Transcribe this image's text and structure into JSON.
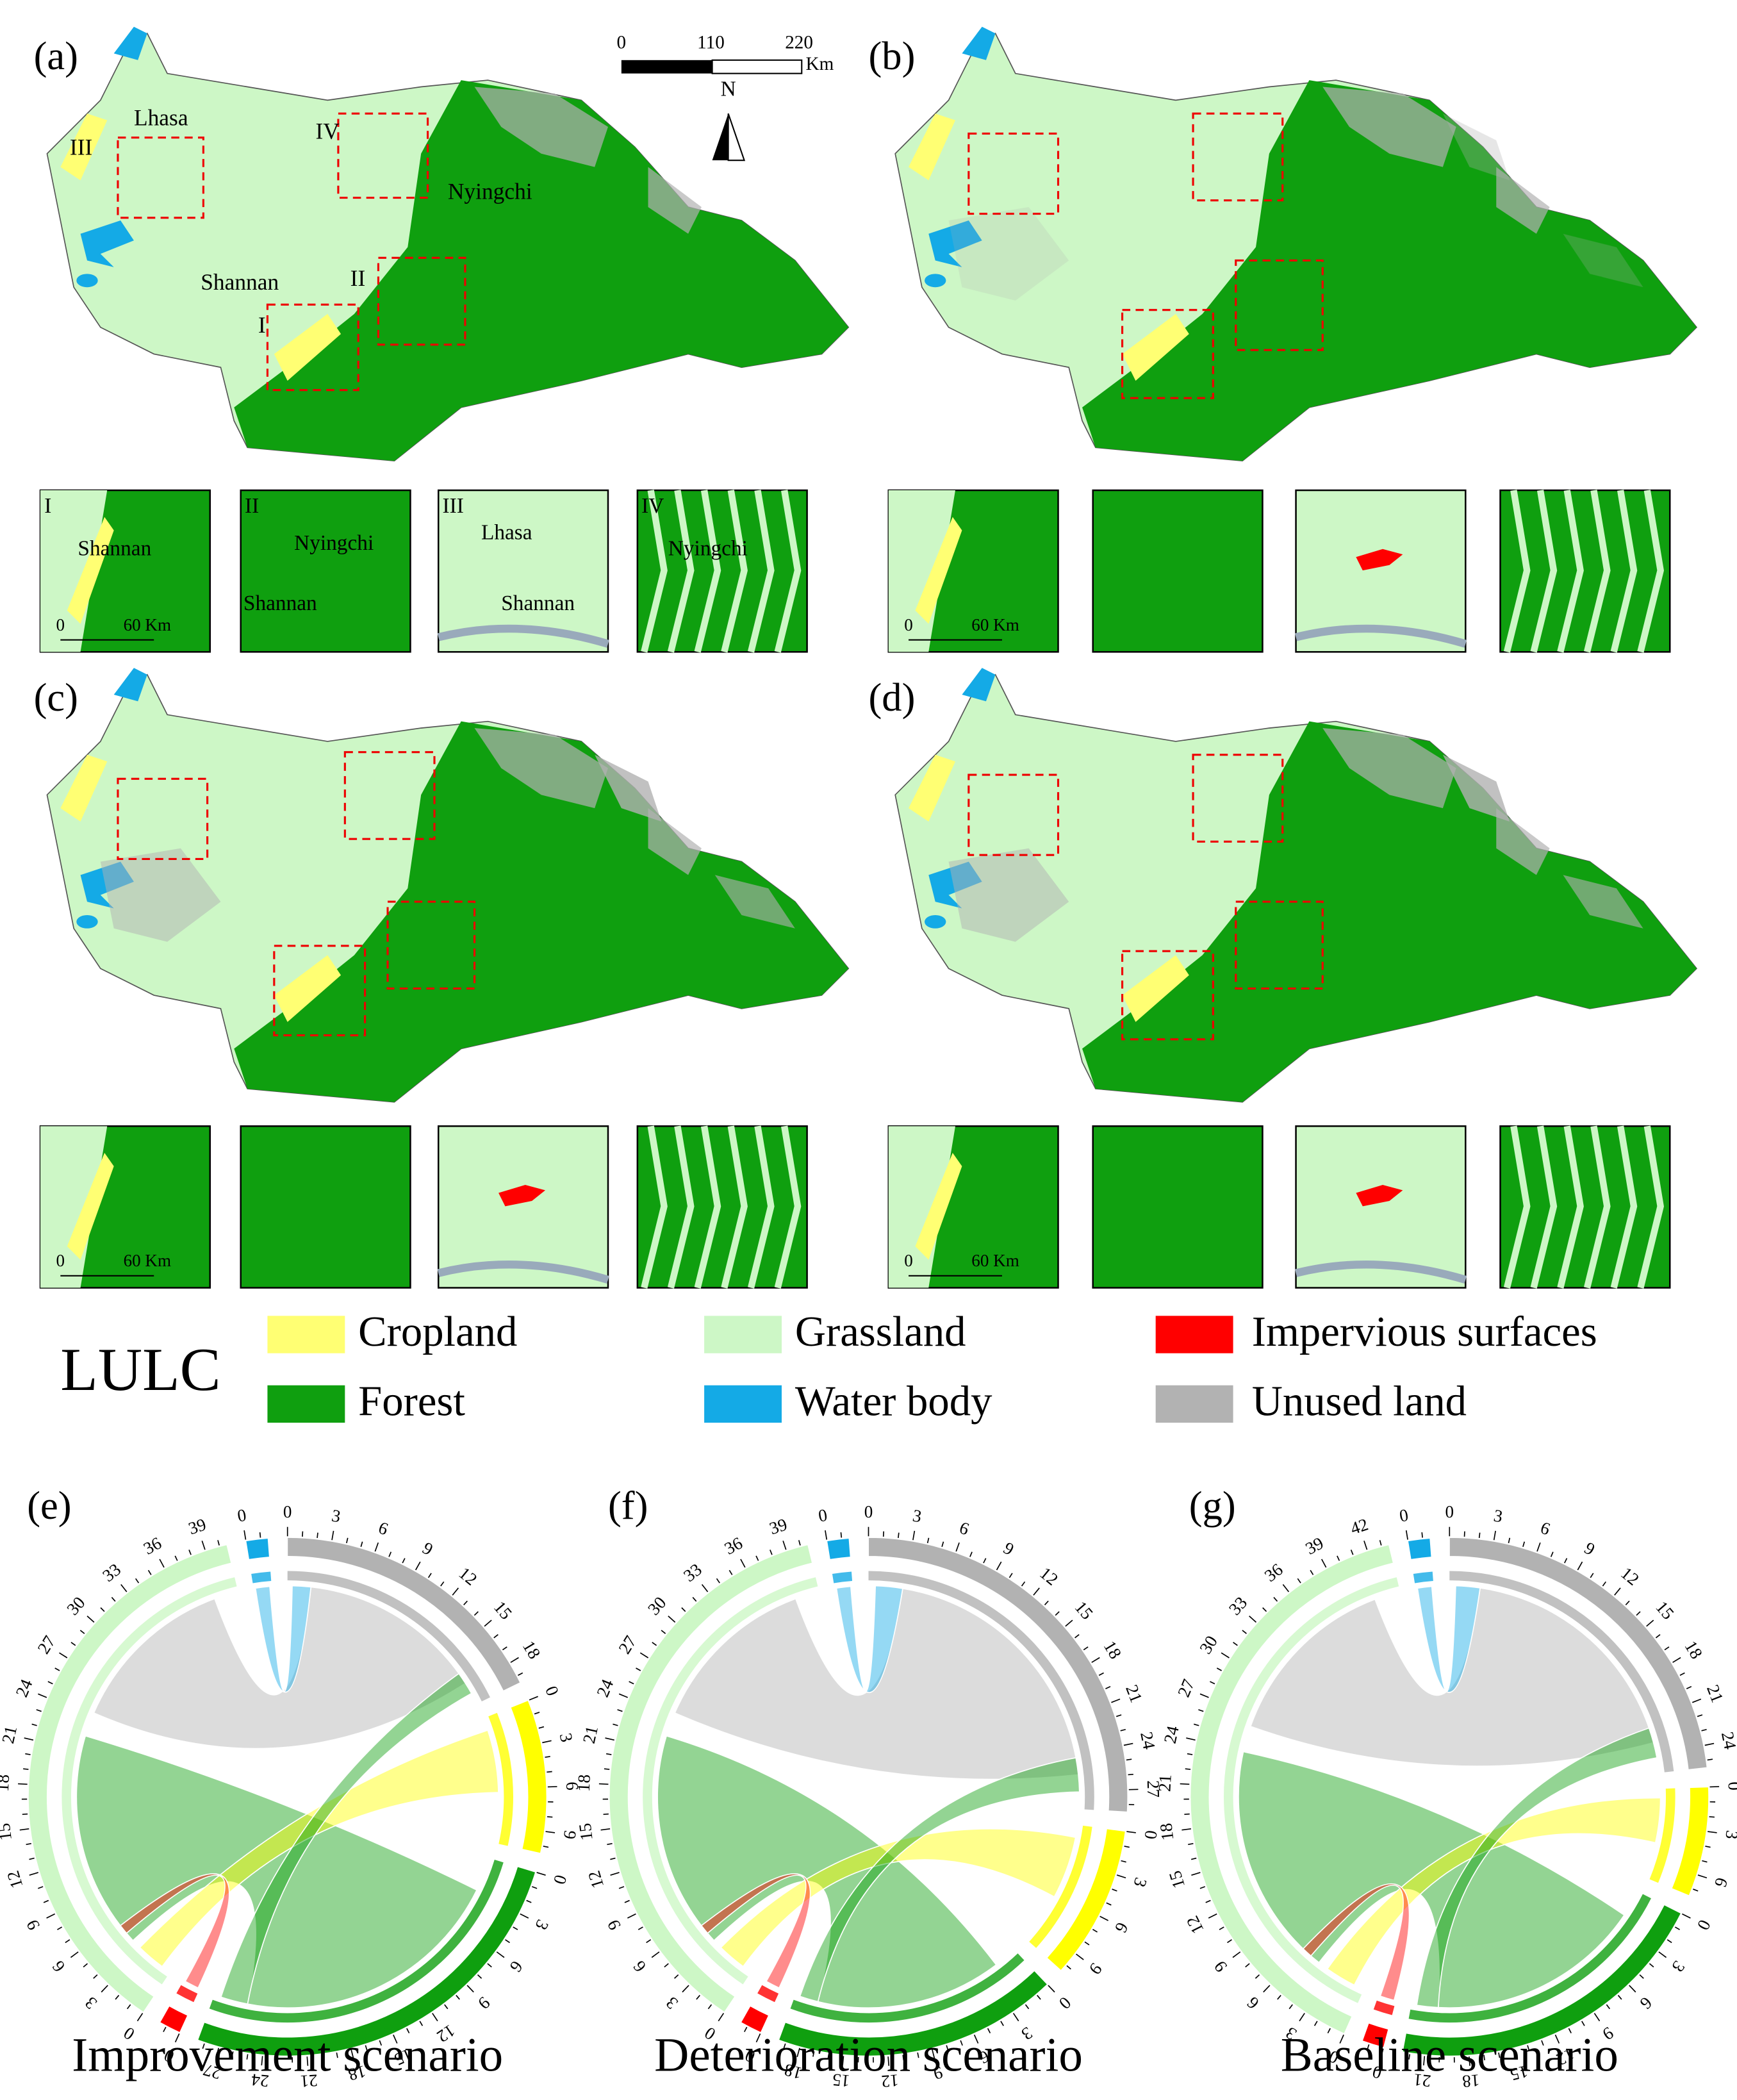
{
  "panels": [
    {
      "label": "(a)",
      "map_labels": [
        "Lhasa",
        "III",
        "IV",
        "Nyingchi",
        "Shannan",
        "II",
        "I"
      ],
      "insets": [
        {
          "labels": [
            "I",
            "Shannan"
          ]
        },
        {
          "labels": [
            "II",
            "Nyingchi",
            "Shannan"
          ]
        },
        {
          "labels": [
            "III",
            "Lhasa",
            "Shannan"
          ]
        },
        {
          "labels": [
            "IV",
            "Nyingchi"
          ]
        }
      ],
      "inset_scale": [
        "0",
        "60 Km"
      ]
    },
    {
      "label": "(b)",
      "inset_scale": [
        "0",
        "60 Km"
      ]
    },
    {
      "label": "(c)",
      "inset_scale": [
        "0",
        "60 Km"
      ]
    },
    {
      "label": "(d)",
      "inset_scale": [
        "0",
        "60 Km"
      ]
    }
  ],
  "scale_bar": {
    "ticks": [
      "0",
      "110",
      "220"
    ],
    "unit": "Km",
    "north": "N"
  },
  "legend": {
    "title": "LULC",
    "items": [
      {
        "name": "Cropland",
        "color": "#ffff73"
      },
      {
        "name": "Forest",
        "color": "#0f9f0f"
      },
      {
        "name": "Grassland",
        "color": "#cdf7c6"
      },
      {
        "name": "Water body",
        "color": "#14aae6"
      },
      {
        "name": "Impervious surfaces",
        "color": "#ff0000"
      },
      {
        "name": "Unused land",
        "color": "#b2b2b2"
      }
    ]
  },
  "chords": [
    {
      "label": "(e)",
      "title": "Improvement scenario",
      "segments": [
        {
          "color": "#b2b2b2",
          "ticks": [
            "0",
            "3",
            "6",
            "9",
            "12",
            "15",
            "18"
          ]
        },
        {
          "color": "#ffff00",
          "ticks": [
            "0",
            "3",
            "6",
            "9"
          ]
        },
        {
          "color": "#0f9f0f",
          "ticks": [
            "0",
            "3",
            "6",
            "9",
            "12",
            "15",
            "18",
            "21",
            "24",
            "27"
          ]
        },
        {
          "color": "#ff0000",
          "ticks": [
            "0"
          ]
        },
        {
          "color": "#cdf7c6",
          "ticks": [
            "0",
            "3",
            "6",
            "9",
            "12",
            "15",
            "18",
            "21",
            "24",
            "27",
            "30",
            "33",
            "36",
            "39"
          ]
        },
        {
          "color": "#14aae6",
          "ticks": [
            "0"
          ]
        }
      ]
    },
    {
      "label": "(f)",
      "title": "Deterioration scenario",
      "segments": [
        {
          "color": "#b2b2b2",
          "ticks": [
            "0",
            "3",
            "6",
            "9",
            "12",
            "15",
            "18",
            "21",
            "24",
            "27"
          ]
        },
        {
          "color": "#ffff00",
          "ticks": [
            "0",
            "3",
            "6",
            "9"
          ]
        },
        {
          "color": "#0f9f0f",
          "ticks": [
            "0",
            "3",
            "6",
            "9",
            "12",
            "15",
            "18"
          ]
        },
        {
          "color": "#ff0000",
          "ticks": [
            "0"
          ]
        },
        {
          "color": "#cdf7c6",
          "ticks": [
            "0",
            "3",
            "6",
            "9",
            "12",
            "15",
            "18",
            "21",
            "24",
            "27",
            "30",
            "33",
            "36",
            "39"
          ]
        },
        {
          "color": "#14aae6",
          "ticks": [
            "0"
          ]
        }
      ]
    },
    {
      "label": "(g)",
      "title": "Baseline scenario",
      "segments": [
        {
          "color": "#b2b2b2",
          "ticks": [
            "0",
            "3",
            "6",
            "9",
            "12",
            "15",
            "18",
            "21",
            "24"
          ]
        },
        {
          "color": "#ffff00",
          "ticks": [
            "0",
            "3",
            "6"
          ]
        },
        {
          "color": "#0f9f0f",
          "ticks": [
            "0",
            "3",
            "6",
            "9",
            "12",
            "15",
            "18",
            "21"
          ]
        },
        {
          "color": "#ff0000",
          "ticks": [
            "0"
          ]
        },
        {
          "color": "#cdf7c6",
          "ticks": [
            "0",
            "3",
            "6",
            "9",
            "12",
            "15",
            "18",
            "21",
            "24",
            "27",
            "30",
            "33",
            "36",
            "39",
            "42"
          ]
        },
        {
          "color": "#14aae6",
          "ticks": [
            "0"
          ]
        }
      ]
    }
  ]
}
